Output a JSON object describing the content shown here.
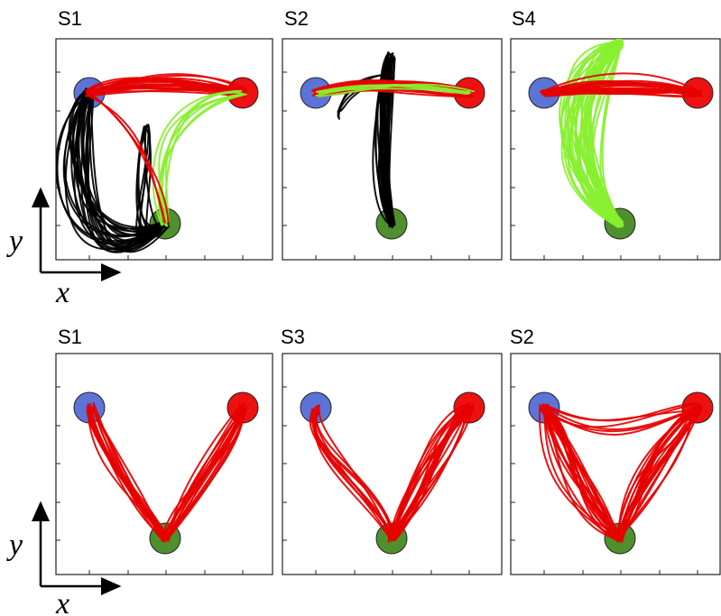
{
  "rows": [
    {
      "panels": [
        {
          "label": "S1"
        },
        {
          "label": "S2"
        },
        {
          "label": "S4"
        }
      ],
      "axes": {
        "y": "y",
        "x": "x"
      }
    },
    {
      "panels": [
        {
          "label": "S1"
        },
        {
          "label": "S3"
        },
        {
          "label": "S2"
        }
      ],
      "axes": {
        "y": "y",
        "x": "x"
      }
    }
  ]
}
